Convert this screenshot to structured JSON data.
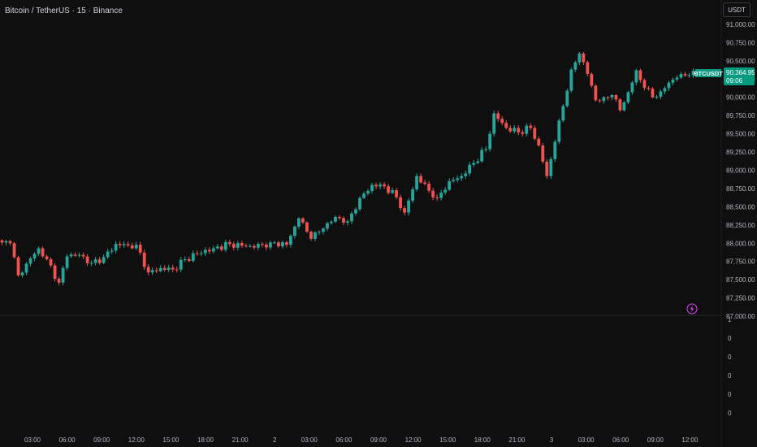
{
  "header": {
    "title": "Bitcoin / TetherUS · 15 · Binance",
    "currency_label": "USDT"
  },
  "price_badge": {
    "symbol": "BTCUSDT",
    "price": "90,364.95",
    "countdown": "09:06"
  },
  "colors": {
    "up": "#26a69a",
    "down": "#ef5350",
    "badge": "#089981",
    "background": "#0f0f0f"
  },
  "icons": {
    "flash": "lightning-icon"
  },
  "chart_data": {
    "type": "candlestick",
    "ylim": [
      86900,
      91200
    ],
    "yticks": [
      "91,000.00",
      "90,750.00",
      "90,500.00",
      "90,250.00",
      "90,000.00",
      "89,750.00",
      "89,500.00",
      "89,250.00",
      "89,000.00",
      "88,750.00",
      "88,500.00",
      "88,250.00",
      "88,000.00",
      "87,750.00",
      "87,500.00",
      "87,250.00",
      "87,000.00"
    ],
    "ytick_values": [
      91000,
      90750,
      90500,
      90250,
      90000,
      89750,
      89500,
      89250,
      89000,
      88750,
      88500,
      88250,
      88000,
      87750,
      87500,
      87250,
      87000
    ],
    "xticks": [
      "03:00",
      "06:00",
      "09:00",
      "12:00",
      "15:00",
      "18:00",
      "21:00",
      "2",
      "03:00",
      "06:00",
      "09:00",
      "12:00",
      "15:00",
      "18:00",
      "21:00",
      "3",
      "03:00",
      "06:00",
      "09:00",
      "12:00"
    ],
    "close_anchors": [
      [
        0,
        88010
      ],
      [
        2,
        88000
      ],
      [
        4,
        87560
      ],
      [
        6,
        87720
      ],
      [
        9,
        87930
      ],
      [
        11,
        87780
      ],
      [
        14,
        87460
      ],
      [
        16,
        87820
      ],
      [
        19,
        87840
      ],
      [
        22,
        87730
      ],
      [
        25,
        87810
      ],
      [
        28,
        87990
      ],
      [
        31,
        87970
      ],
      [
        33,
        87980
      ],
      [
        36,
        87600
      ],
      [
        39,
        87660
      ],
      [
        42,
        87640
      ],
      [
        45,
        87780
      ],
      [
        48,
        87860
      ],
      [
        52,
        87930
      ],
      [
        56,
        87990
      ],
      [
        60,
        87960
      ],
      [
        62,
        87940
      ],
      [
        66,
        88010
      ],
      [
        70,
        87980
      ],
      [
        73,
        88340
      ],
      [
        76,
        88060
      ],
      [
        79,
        88200
      ],
      [
        82,
        88360
      ],
      [
        85,
        88300
      ],
      [
        88,
        88620
      ],
      [
        91,
        88800
      ],
      [
        94,
        88780
      ],
      [
        97,
        88630
      ],
      [
        99,
        88420
      ],
      [
        102,
        88920
      ],
      [
        105,
        88720
      ],
      [
        107,
        88620
      ],
      [
        110,
        88850
      ],
      [
        113,
        88920
      ],
      [
        116,
        89100
      ],
      [
        119,
        89290
      ],
      [
        121,
        89780
      ],
      [
        124,
        89580
      ],
      [
        127,
        89520
      ],
      [
        130,
        89580
      ],
      [
        132,
        89340
      ],
      [
        134,
        88920
      ],
      [
        136,
        89390
      ],
      [
        138,
        89880
      ],
      [
        140,
        90380
      ],
      [
        142,
        90600
      ],
      [
        144,
        90320
      ],
      [
        146,
        89960
      ],
      [
        148,
        90000
      ],
      [
        150,
        90030
      ],
      [
        152,
        89820
      ],
      [
        154,
        90070
      ],
      [
        156,
        90370
      ],
      [
        158,
        90130
      ],
      [
        160,
        90000
      ],
      [
        162,
        90080
      ],
      [
        164,
        90200
      ],
      [
        166,
        90270
      ],
      [
        168,
        90300
      ],
      [
        170,
        90364
      ]
    ],
    "y_unit": "USDT",
    "lower_pane_ticks": [
      "1",
      "0",
      "0",
      "0",
      "0",
      "0"
    ]
  }
}
